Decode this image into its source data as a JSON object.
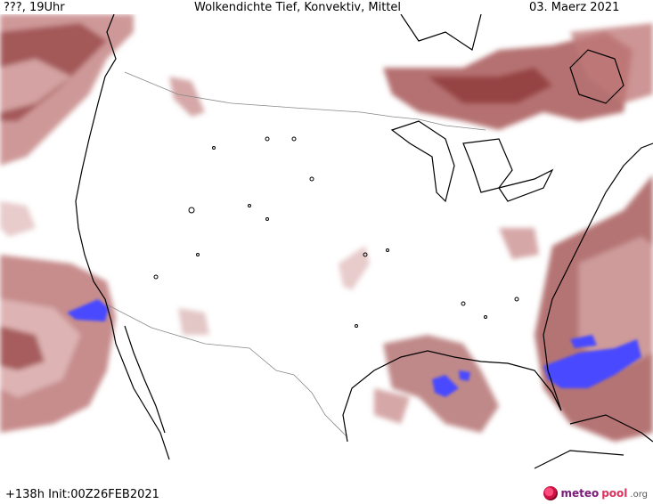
{
  "header": {
    "location": "???, 19Uhr",
    "title": "Wolkendichte   Tief, Konvektiv, Mittel",
    "date": "03. Maerz 2021"
  },
  "footer": {
    "run_info": "+138h Init:00Z26FEB2021",
    "logo_meteo": "meteo",
    "logo_pool": "pool",
    "logo_org": ".org"
  },
  "legend_colors": {
    "cloud_light": "#d7a4a4",
    "cloud_medium": "#b66565",
    "cloud_dense": "#8e3a3a",
    "convective": "#4646ff",
    "coastline": "#000000",
    "border": "#888888"
  }
}
